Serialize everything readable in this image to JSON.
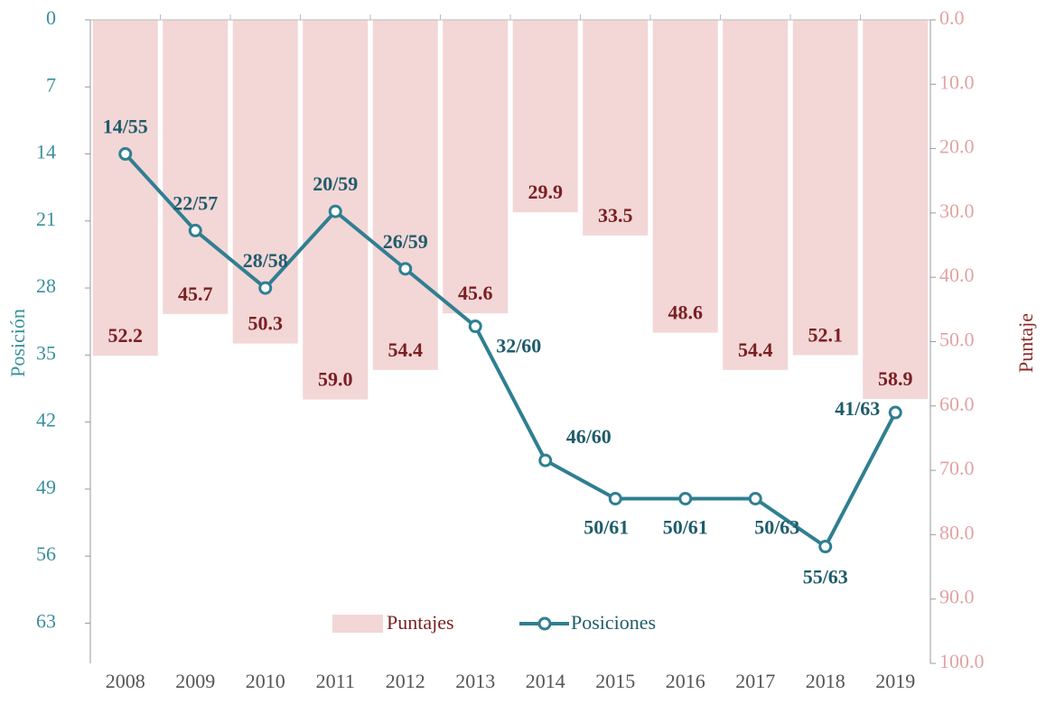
{
  "chart_data": {
    "type": "bar_line",
    "categories": [
      "2008",
      "2009",
      "2010",
      "2011",
      "2012",
      "2013",
      "2014",
      "2015",
      "2016",
      "2017",
      "2018",
      "2019"
    ],
    "ylabel": "Posición",
    "y2label": "Puntaje",
    "ylim": [
      0,
      67.2
    ],
    "yticks": [
      0,
      7,
      14,
      21,
      28,
      35,
      42,
      49,
      56,
      63
    ],
    "y2lim": [
      0,
      100
    ],
    "y2ticks": [
      {
        "value": 0,
        "label": "0.0"
      },
      {
        "value": 10,
        "label": "10.0"
      },
      {
        "value": 20,
        "label": "20.0"
      },
      {
        "value": 30,
        "label": "30.0"
      },
      {
        "value": 40,
        "label": "40.0"
      },
      {
        "value": 50,
        "label": "50.0"
      },
      {
        "value": 60,
        "label": "60.0"
      },
      {
        "value": 70,
        "label": "70.0"
      },
      {
        "value": 80,
        "label": "80.0"
      },
      {
        "value": 90,
        "label": "90.0"
      },
      {
        "value": 100,
        "label": "100.0"
      }
    ],
    "y_inverted": true,
    "y2_inverted": true,
    "series": [
      {
        "name": "Puntajes",
        "type": "bar",
        "axis": "y2",
        "color": "#f3d6d6",
        "values": [
          52.2,
          45.7,
          50.3,
          59.0,
          54.4,
          45.6,
          29.9,
          33.5,
          48.6,
          54.4,
          52.1,
          58.9
        ],
        "value_labels": [
          "52.2",
          "45.7",
          "50.3",
          "59.0",
          "54.4",
          "45.6",
          "29.9",
          "33.5",
          "48.6",
          "54.4",
          "52.1",
          "58.9"
        ]
      },
      {
        "name": "Posiciones",
        "type": "line",
        "color": "#2f7f91",
        "values": [
          14,
          22,
          28,
          20,
          26,
          32,
          46,
          50,
          50,
          50,
          55,
          41
        ],
        "value_labels": [
          "14/55",
          "22/57",
          "28/58",
          "20/59",
          "26/59",
          "32/60",
          "46/60",
          "50/61",
          "50/61",
          "50/63",
          "55/63",
          "41/63"
        ]
      }
    ]
  }
}
